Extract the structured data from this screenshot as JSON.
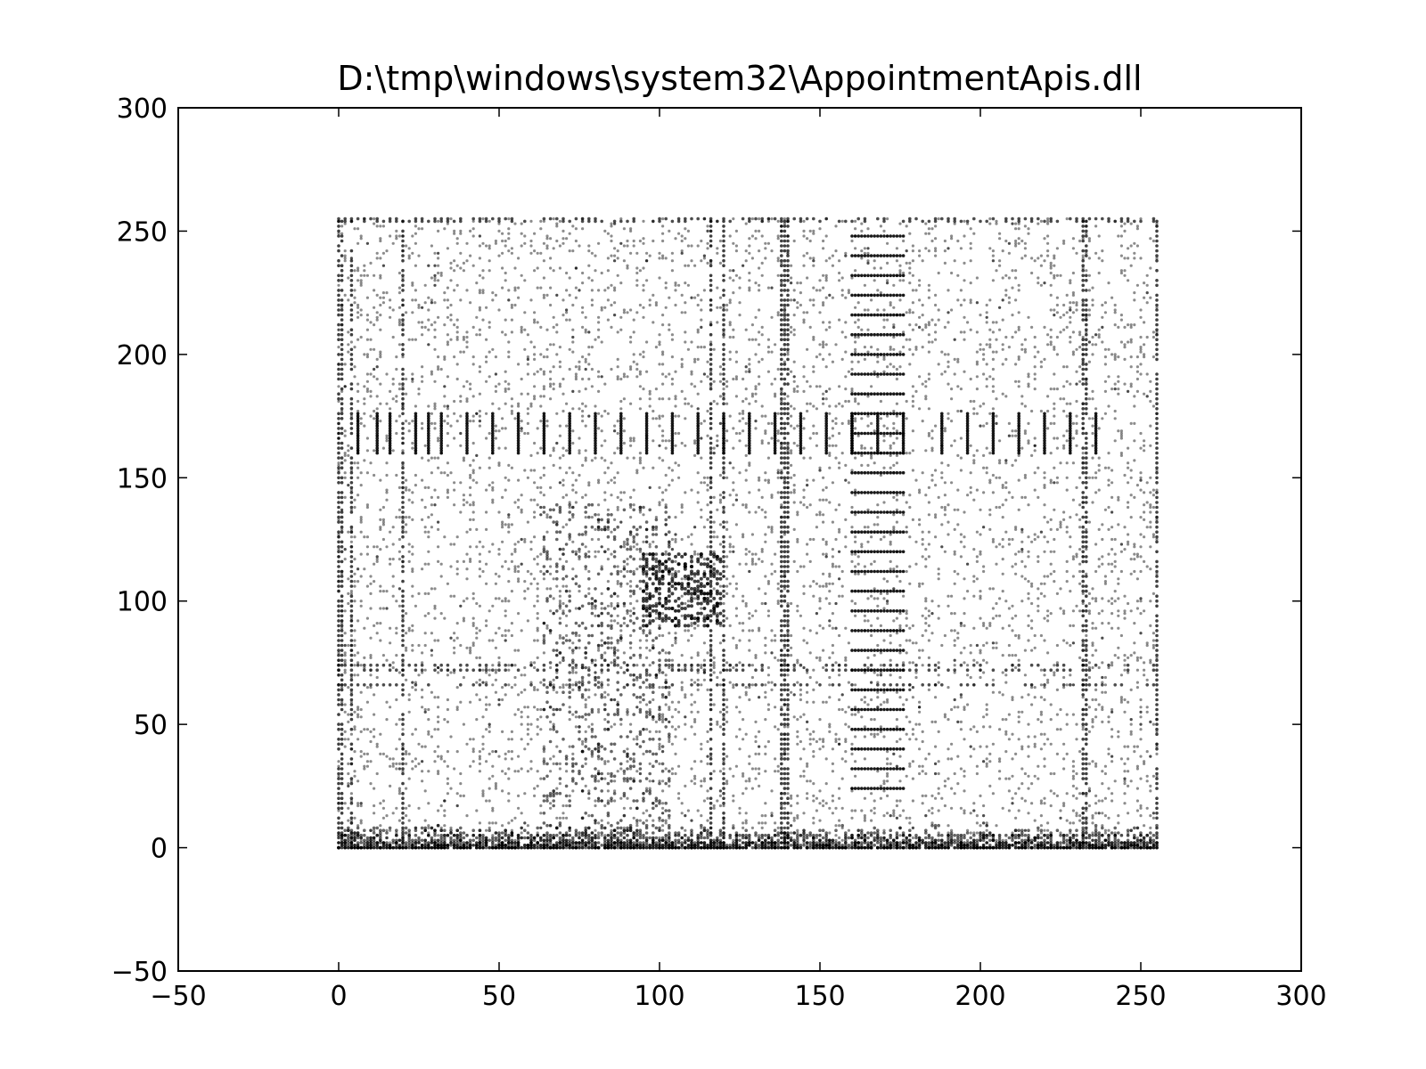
{
  "chart_data": {
    "type": "scatter",
    "title": "D:\\tmp\\windows\\system32\\AppointmentApis.dll",
    "xlabel": "",
    "ylabel": "",
    "xlim": [
      -50,
      300
    ],
    "ylim": [
      -50,
      300
    ],
    "xticks": [
      -50,
      0,
      50,
      100,
      150,
      200,
      250,
      300
    ],
    "yticks": [
      -50,
      0,
      50,
      100,
      150,
      200,
      250,
      300
    ],
    "xtick_labels": [
      "−50",
      "0",
      "50",
      "100",
      "150",
      "200",
      "250",
      "300"
    ],
    "ytick_labels": [
      "−50",
      "0",
      "50",
      "100",
      "150",
      "200",
      "250",
      "300"
    ],
    "grid": false,
    "legend": "none",
    "marker_color": "#000000",
    "data_domain": {
      "x": [
        0,
        255
      ],
      "y": [
        0,
        255
      ]
    },
    "dense_vertical_lines_x": [
      0,
      1,
      4,
      20,
      116,
      120,
      138,
      139,
      140,
      232,
      233,
      255
    ],
    "dense_horizontal_lines_y": [
      0,
      2,
      5,
      255,
      254,
      74,
      72,
      66
    ],
    "tick_segments": {
      "x": [
        6,
        12,
        16,
        24,
        28,
        32,
        40,
        48,
        56,
        64,
        72,
        80,
        88,
        96,
        104,
        112,
        120,
        128,
        136,
        144,
        152,
        160,
        188,
        196,
        204,
        212,
        220,
        228,
        236
      ],
      "y_range": [
        160,
        176
      ]
    },
    "horizontal_ladder": {
      "x_range": [
        160,
        176
      ],
      "y": [
        24,
        32,
        40,
        48,
        56,
        64,
        72,
        80,
        88,
        96,
        104,
        112,
        120,
        128,
        136,
        144,
        152,
        184,
        192,
        200,
        208,
        216,
        224,
        232,
        240,
        248
      ]
    },
    "box": {
      "x": [
        160,
        176
      ],
      "y": [
        160,
        176
      ]
    }
  }
}
